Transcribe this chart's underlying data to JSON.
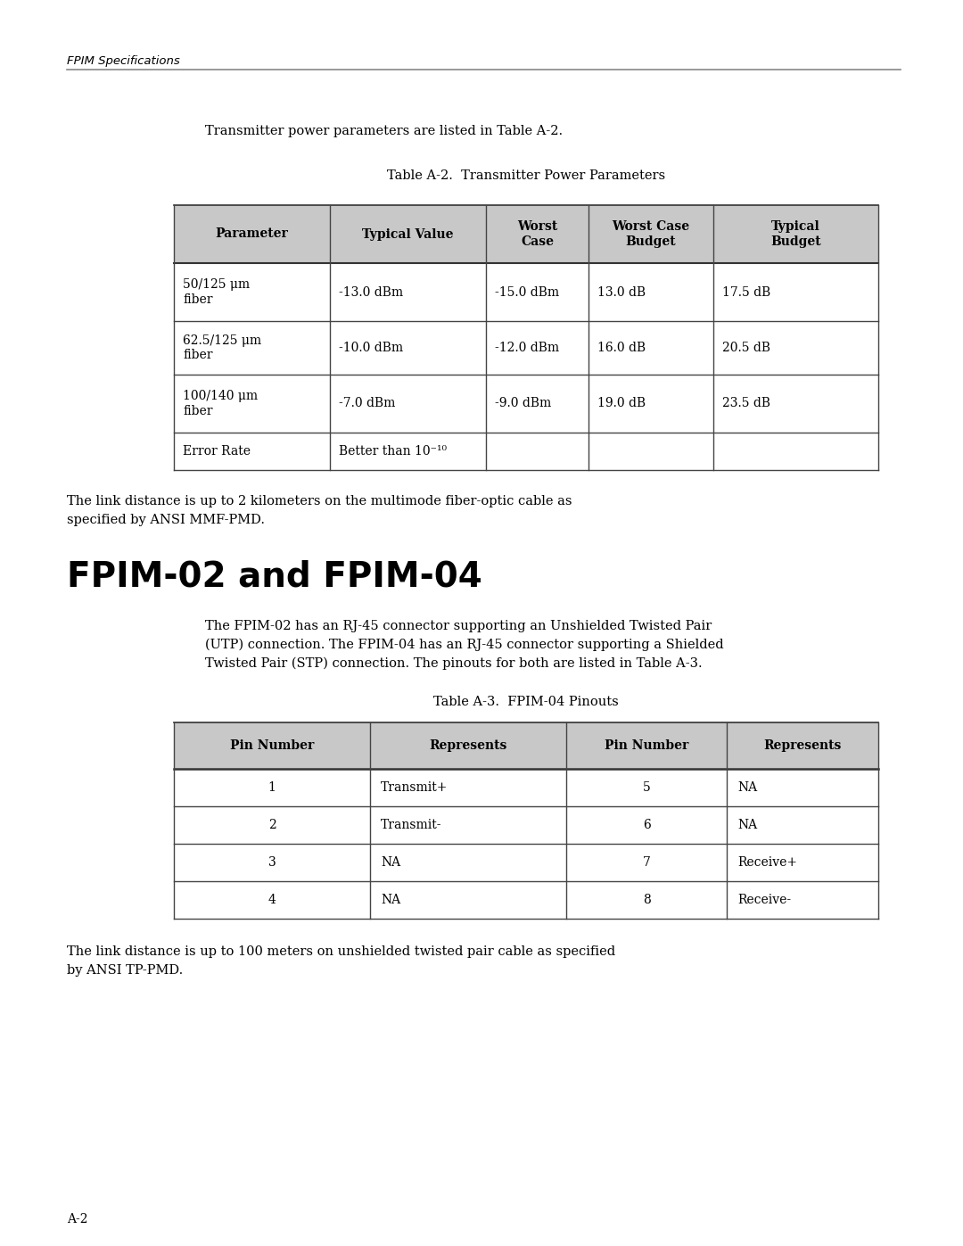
{
  "page_bg": "#ffffff",
  "header_text": "FPIM Specifications",
  "footer_text": "A-2",
  "intro_text1": "Transmitter power parameters are listed in Table A-2.",
  "table1_title": "Table A-2.  Transmitter Power Parameters",
  "table1_headers": [
    "Parameter",
    "Typical Value",
    "Worst\nCase",
    "Worst Case\nBudget",
    "Typical\nBudget"
  ],
  "table1_rows": [
    [
      "50/125 μm\nfiber",
      "-13.0 dBm",
      "-15.0 dBm",
      "13.0 dB",
      "17.5 dB"
    ],
    [
      "62.5/125 μm\nfiber",
      "-10.0 dBm",
      "-12.0 dBm",
      "16.0 dB",
      "20.5 dB"
    ],
    [
      "100/140 μm\nfiber",
      "-7.0 dBm",
      "-9.0 dBm",
      "19.0 dB",
      "23.5 dB"
    ],
    [
      "Error Rate",
      "Better than 10⁻¹⁰",
      "",
      "",
      ""
    ]
  ],
  "after_table1_text": "The link distance is up to 2 kilometers on the multimode fiber-optic cable as\nspecified by ANSI MMF-PMD.",
  "section_title": "FPIM-02 and FPIM-04",
  "section_body": "The FPIM-02 has an RJ-45 connector supporting an Unshielded Twisted Pair\n(UTP) connection. The FPIM-04 has an RJ-45 connector supporting a Shielded\nTwisted Pair (STP) connection. The pinouts for both are listed in Table A-3.",
  "table2_title": "Table A-3.  FPIM-04 Pinouts",
  "table2_headers": [
    "Pin Number",
    "Represents",
    "Pin Number",
    "Represents"
  ],
  "table2_rows": [
    [
      "1",
      "Transmit+",
      "5",
      "NA"
    ],
    [
      "2",
      "Transmit-",
      "6",
      "NA"
    ],
    [
      "3",
      "NA",
      "7",
      "Receive+"
    ],
    [
      "4",
      "NA",
      "8",
      "Receive-"
    ]
  ],
  "after_table2_text": "The link distance is up to 100 meters on unshielded twisted pair cable as specified\nby ANSI TP-PMD.",
  "text_color": "#000000",
  "line_color": "#555555",
  "header_bg": "#cccccc"
}
